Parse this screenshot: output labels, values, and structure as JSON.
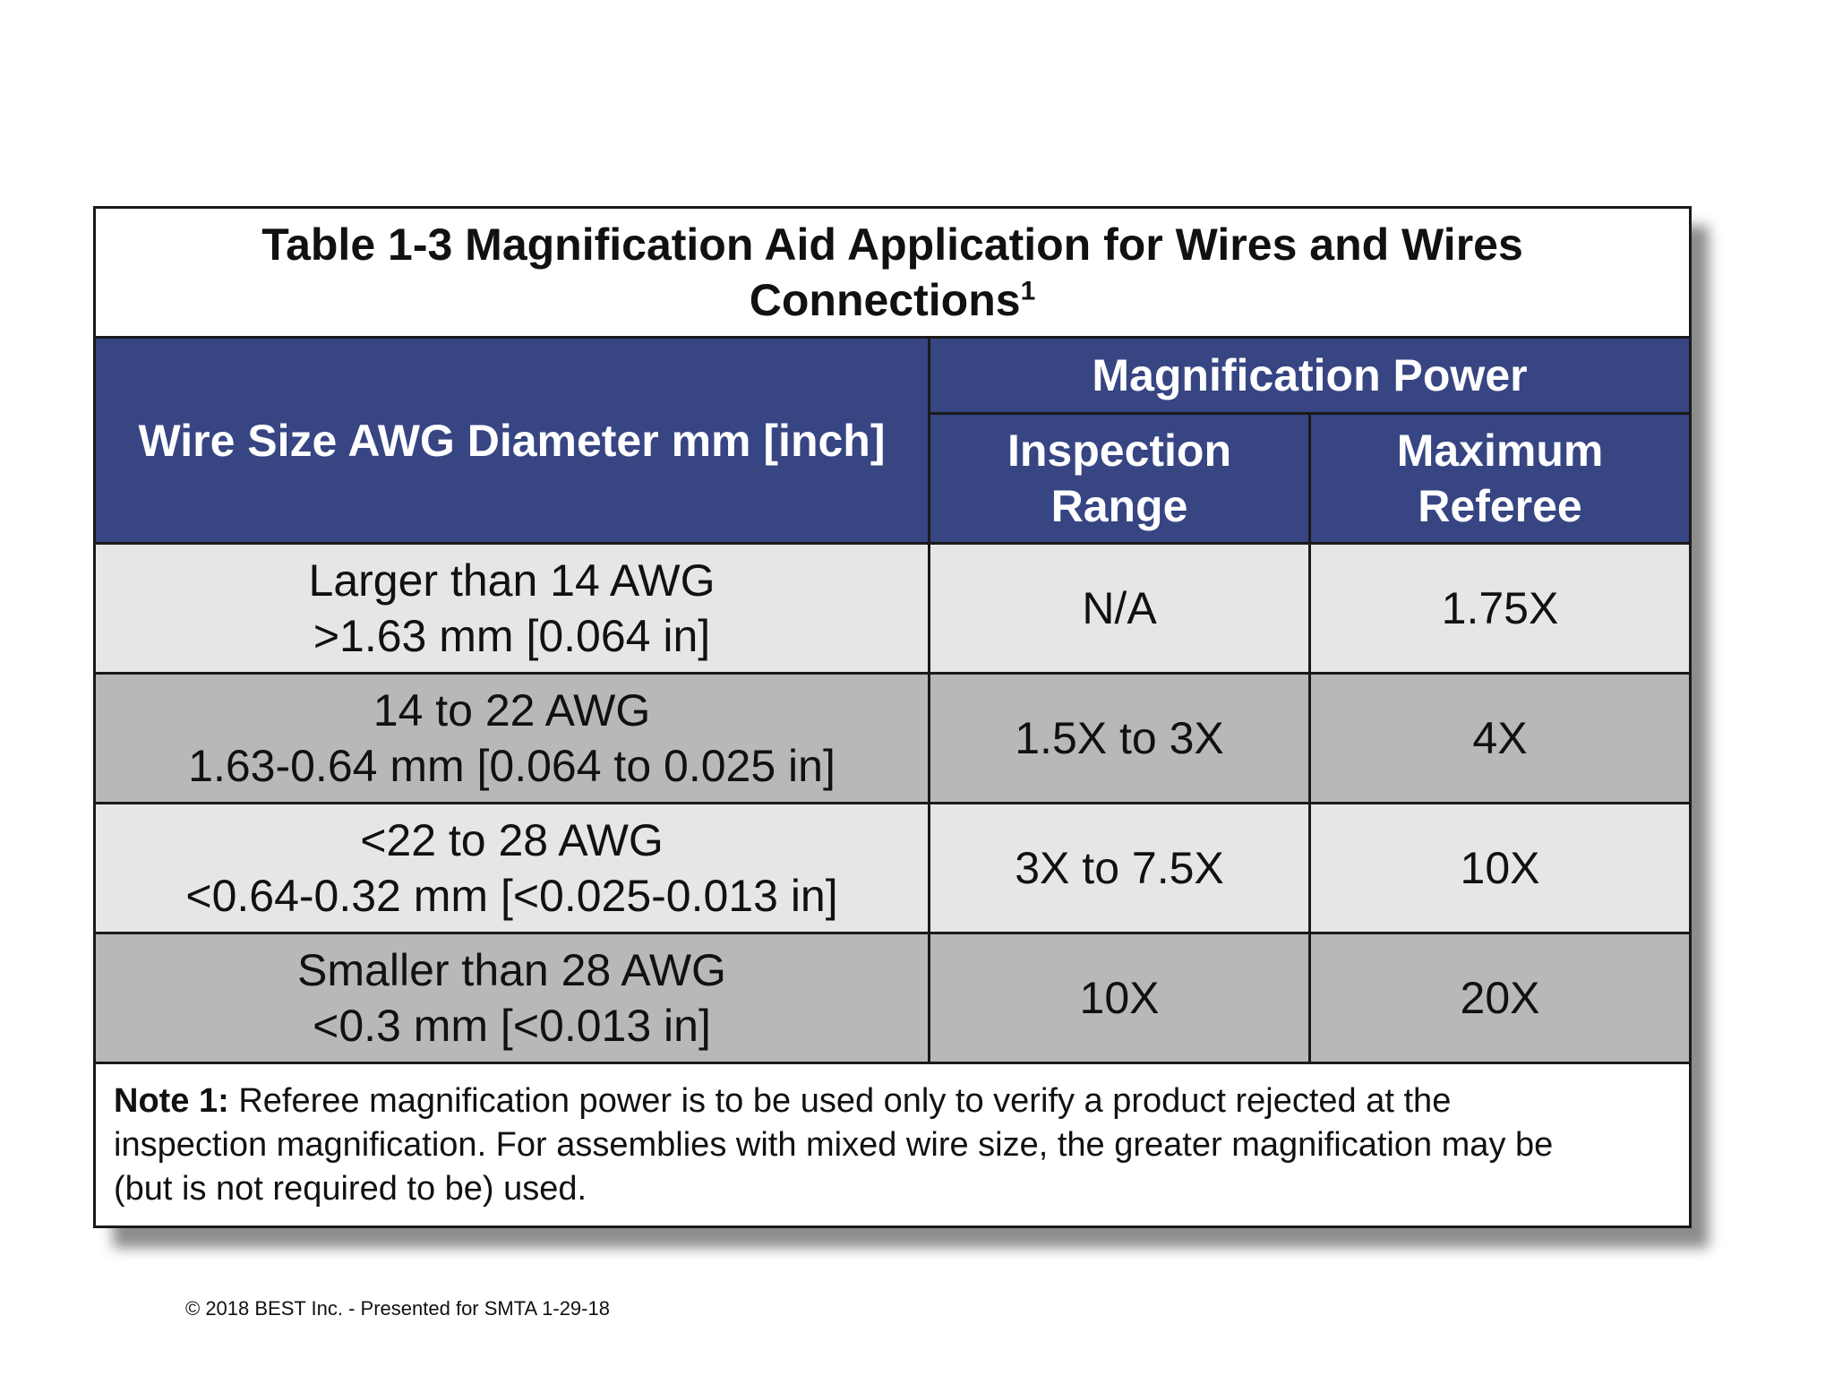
{
  "table": {
    "title_line1": "Table 1-3 Magnification Aid Application for Wires and Wires",
    "title_line2": "Connections",
    "title_sup": "1",
    "header": {
      "wire_size": "Wire Size AWG Diameter mm [inch]",
      "magnification_power": "Magnification Power",
      "inspection_line1": "Inspection",
      "inspection_line2": "Range",
      "maximum_line1": "Maximum",
      "maximum_line2": "Referee"
    },
    "rows": [
      {
        "size_line1": "Larger than 14 AWG",
        "size_line2": ">1.63 mm [0.064 in]",
        "inspection": "N/A",
        "referee": "1.75X"
      },
      {
        "size_line1": "14 to 22 AWG",
        "size_line2": "1.63-0.64 mm [0.064 to 0.025 in]",
        "inspection": "1.5X to 3X",
        "referee": "4X"
      },
      {
        "size_line1": "<22 to 28 AWG",
        "size_line2": "<0.64-0.32 mm [<0.025-0.013 in]",
        "inspection": "3X to 7.5X",
        "referee": "10X"
      },
      {
        "size_line1": "Smaller than 28 AWG",
        "size_line2": "<0.3 mm [<0.013 in]",
        "inspection": "10X",
        "referee": "20X"
      }
    ],
    "note": {
      "label": "Note 1:",
      "text_line1": " Referee magnification power is to be used only to verify a product rejected at the",
      "text_line2": "inspection magnification. For assemblies with mixed wire size, the greater magnification may be",
      "text_line3": "(but is not required to be) used."
    }
  },
  "footer": "© 2018 BEST Inc. - Presented for SMTA 1-29-18"
}
